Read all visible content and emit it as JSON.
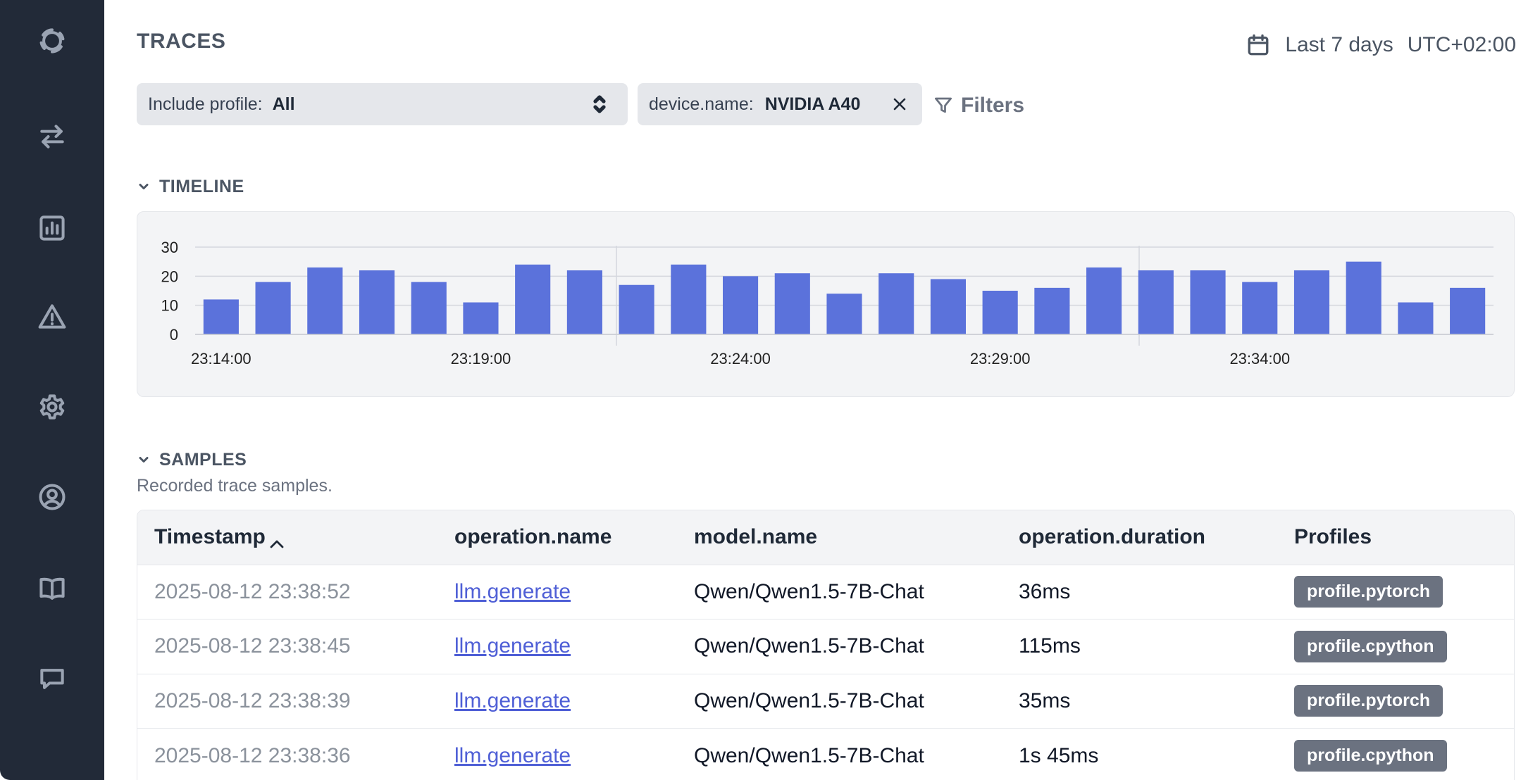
{
  "sidebar": {
    "items": [
      {
        "name": "logo-icon",
        "top": 34
      },
      {
        "name": "transfer-icon",
        "top": 170
      },
      {
        "name": "bar-chart-icon",
        "top": 300
      },
      {
        "name": "warning-icon",
        "top": 426
      },
      {
        "name": "gear-icon",
        "top": 554
      },
      {
        "name": "user-circle-icon",
        "top": 682
      },
      {
        "name": "book-icon",
        "top": 812
      },
      {
        "name": "chat-icon",
        "top": 940
      }
    ]
  },
  "header": {
    "title": "TRACES",
    "date_range": "Last 7 days",
    "timezone": "UTC+02:00"
  },
  "filters": {
    "profile_label": "Include profile:",
    "profile_value": "All",
    "chip_key": "device.name:",
    "chip_value": "NVIDIA A40",
    "filters_label": "Filters"
  },
  "timeline": {
    "title": "TIMELINE"
  },
  "chart_data": {
    "type": "bar",
    "ylim": [
      0,
      30
    ],
    "yticks": [
      "0",
      "10",
      "20",
      "30"
    ],
    "xtick_labels": [
      "23:14:00",
      "23:19:00",
      "23:24:00",
      "23:29:00",
      "23:34:00"
    ],
    "values": [
      12,
      18,
      23,
      22,
      18,
      11,
      24,
      22,
      17,
      24,
      20,
      21,
      14,
      21,
      19,
      15,
      16,
      23,
      22,
      22,
      18,
      22,
      25,
      11,
      16
    ],
    "bar_color": "#5b72db"
  },
  "samples": {
    "title": "SAMPLES",
    "subtitle": "Recorded trace samples.",
    "columns": [
      "Timestamp",
      "operation.name",
      "model.name",
      "operation.duration",
      "Profiles"
    ],
    "rows": [
      {
        "timestamp": "2025-08-12 23:38:52",
        "operation": "llm.generate",
        "model": "Qwen/Qwen1.5-7B-Chat",
        "duration": "36ms",
        "profile": "profile.pytorch"
      },
      {
        "timestamp": "2025-08-12 23:38:45",
        "operation": "llm.generate",
        "model": "Qwen/Qwen1.5-7B-Chat",
        "duration": "115ms",
        "profile": "profile.cpython"
      },
      {
        "timestamp": "2025-08-12 23:38:39",
        "operation": "llm.generate",
        "model": "Qwen/Qwen1.5-7B-Chat",
        "duration": "35ms",
        "profile": "profile.pytorch"
      },
      {
        "timestamp": "2025-08-12 23:38:36",
        "operation": "llm.generate",
        "model": "Qwen/Qwen1.5-7B-Chat",
        "duration": "1s 45ms",
        "profile": "profile.cpython"
      }
    ]
  }
}
